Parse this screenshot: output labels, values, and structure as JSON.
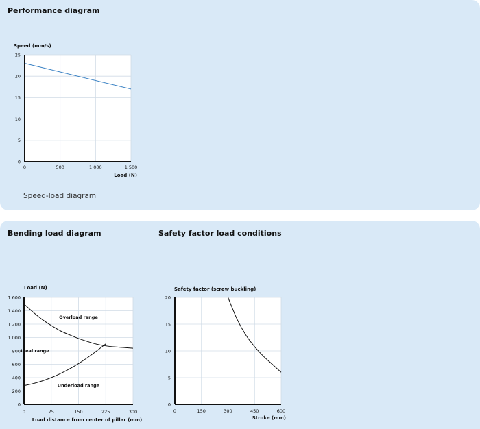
{
  "performance": {
    "title": "Performance diagram",
    "caption": "Speed-load diagram"
  },
  "bending": {
    "title": "Bending load diagram"
  },
  "safety": {
    "title": "Safety factor load conditions"
  },
  "chart_data": [
    {
      "id": "speed-load",
      "type": "line",
      "xlabel": "Load (N)",
      "ylabel": "Speed (mm/s)",
      "xlim": [
        0,
        1500
      ],
      "ylim": [
        0,
        25
      ],
      "xticks": [
        0,
        500,
        1000,
        1500
      ],
      "xtick_labels": [
        "0",
        "500",
        "1 000",
        "1 500"
      ],
      "yticks": [
        0,
        5,
        10,
        15,
        20,
        25
      ],
      "ytick_labels": [
        "0",
        "5",
        "10",
        "15",
        "20",
        "25"
      ],
      "grid": true,
      "series": [
        {
          "x": [
            0,
            1500
          ],
          "y": [
            23,
            17
          ],
          "color": "#3b82c4"
        }
      ]
    },
    {
      "id": "bending-load",
      "type": "line",
      "xlabel": "Load distance from center of pillar (mm)",
      "ylabel": "Load (N)",
      "xlim": [
        0,
        300
      ],
      "ylim": [
        0,
        1600
      ],
      "xticks": [
        0,
        75,
        150,
        225,
        300
      ],
      "xtick_labels": [
        "0",
        "75",
        "150",
        "225",
        "300"
      ],
      "yticks": [
        0,
        200,
        400,
        600,
        800,
        1000,
        1200,
        1400,
        1600
      ],
      "ytick_labels": [
        "0",
        "200",
        "400",
        "600",
        "800",
        "1 000",
        "1 200",
        "1 400",
        "1 600"
      ],
      "grid": true,
      "annotations": [
        {
          "text": "Overload range",
          "x": 150,
          "y": 1280
        },
        {
          "text": "Ideal range",
          "x": 30,
          "y": 780
        },
        {
          "text": "Underload range",
          "x": 150,
          "y": 260
        }
      ],
      "series": [
        {
          "x": [
            0,
            25,
            50,
            75,
            100,
            125,
            150,
            175,
            200,
            225,
            250,
            275,
            300
          ],
          "y": [
            1500,
            1380,
            1270,
            1180,
            1100,
            1040,
            985,
            940,
            900,
            875,
            860,
            850,
            840
          ],
          "color": "#111111"
        },
        {
          "x": [
            0,
            25,
            50,
            75,
            100,
            125,
            150,
            175,
            200,
            225
          ],
          "y": [
            280,
            310,
            350,
            400,
            460,
            530,
            610,
            700,
            800,
            905
          ],
          "color": "#111111"
        }
      ]
    },
    {
      "id": "safety-factor",
      "type": "line",
      "xlabel": "Stroke (mm)",
      "ylabel": "Safety factor (screw buckling)",
      "xlim": [
        0,
        600
      ],
      "ylim": [
        0,
        20
      ],
      "xticks": [
        0,
        150,
        300,
        450,
        600
      ],
      "xtick_labels": [
        "0",
        "150",
        "300",
        "450",
        "600"
      ],
      "yticks": [
        0,
        5,
        10,
        15,
        20
      ],
      "ytick_labels": [
        "0",
        "5",
        "10",
        "15",
        "20"
      ],
      "grid": true,
      "series": [
        {
          "x": [
            300,
            350,
            400,
            450,
            500,
            550,
            600
          ],
          "y": [
            20,
            16.0,
            13.0,
            10.8,
            9.0,
            7.5,
            6.0
          ],
          "color": "#111111"
        }
      ]
    }
  ]
}
